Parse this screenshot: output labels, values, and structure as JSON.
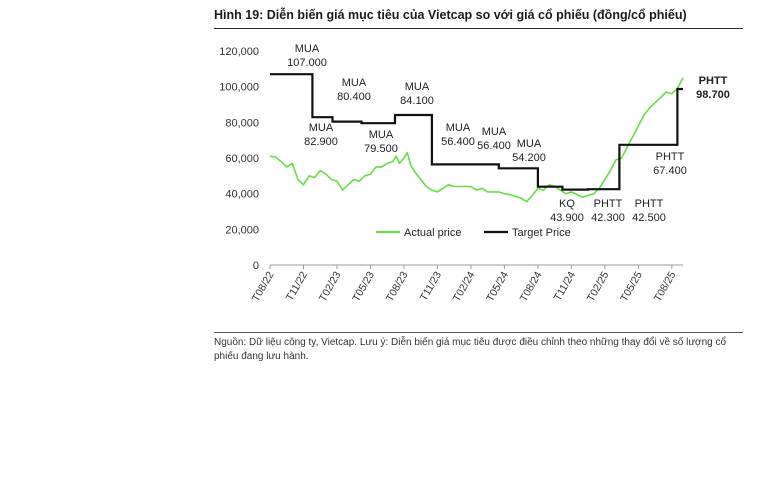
{
  "figure": {
    "title": "Hình 19: Diễn biến giá mục tiêu của Vietcap so với giá cổ phiếu (đồng/cổ phiếu)",
    "source": "Nguồn: Dữ liệu công ty, Vietcap. Lưu ý: Diễn biến giá mục tiêu được điều chỉnh theo những thay đổi về số lượng cổ phiếu đang lưu hành."
  },
  "chart_data": {
    "type": "line",
    "title": "Hình 19: Diễn biến giá mục tiêu của Vietcap so với giá cổ phiếu (đồng/cổ phiếu)",
    "xlabel": "",
    "ylabel": "",
    "ylim": [
      0,
      120000
    ],
    "y_ticks": [
      0,
      20000,
      40000,
      60000,
      80000,
      100000,
      120000
    ],
    "y_tick_labels": [
      "0",
      "20,000",
      "40,000",
      "60,000",
      "80,000",
      "100,000",
      "120,000"
    ],
    "x_ticks": [
      "T08/22",
      "T11/22",
      "T02/23",
      "T05/23",
      "T08/23",
      "T11/23",
      "T02/24",
      "T05/24",
      "T08/24",
      "T11/24",
      "T02/25",
      "T05/25",
      "T08/25"
    ],
    "x_range_months": [
      0,
      37
    ],
    "legend": {
      "position": "bottom-center",
      "entries": [
        "Actual price",
        "Target Price"
      ]
    },
    "colors": {
      "actual": "#66dd44",
      "target": "#111111"
    },
    "series": [
      {
        "name": "Actual price",
        "color": "#66dd44",
        "points": [
          [
            0,
            61000
          ],
          [
            0.5,
            60500
          ],
          [
            1,
            58000
          ],
          [
            1.5,
            55000
          ],
          [
            2,
            57000
          ],
          [
            2.5,
            48000
          ],
          [
            3,
            45000
          ],
          [
            3.5,
            50000
          ],
          [
            4,
            49000
          ],
          [
            4.5,
            53000
          ],
          [
            5,
            51000
          ],
          [
            5.5,
            48000
          ],
          [
            6,
            47000
          ],
          [
            6.5,
            42000
          ],
          [
            7,
            45000
          ],
          [
            7.5,
            48000
          ],
          [
            8,
            47000
          ],
          [
            8.5,
            50000
          ],
          [
            9,
            51000
          ],
          [
            9.5,
            55000
          ],
          [
            10,
            55000
          ],
          [
            10.5,
            57000
          ],
          [
            11,
            58000
          ],
          [
            11.3,
            61000
          ],
          [
            11.6,
            57000
          ],
          [
            12,
            60000
          ],
          [
            12.3,
            63000
          ],
          [
            12.6,
            56000
          ],
          [
            13,
            52000
          ],
          [
            13.5,
            48000
          ],
          [
            14,
            44000
          ],
          [
            14.5,
            42000
          ],
          [
            15,
            41000
          ],
          [
            15.5,
            43000
          ],
          [
            16,
            45000
          ],
          [
            16.5,
            44000
          ],
          [
            17,
            44000
          ],
          [
            17.5,
            44000
          ],
          [
            18,
            44000
          ],
          [
            18.5,
            42000
          ],
          [
            19,
            43000
          ],
          [
            19.5,
            41000
          ],
          [
            20,
            41000
          ],
          [
            20.5,
            41000
          ],
          [
            21,
            40000
          ],
          [
            21.5,
            39500
          ],
          [
            22,
            38500
          ],
          [
            22.5,
            37500
          ],
          [
            23,
            35500
          ],
          [
            23.5,
            39000
          ],
          [
            24,
            43000
          ],
          [
            24.5,
            42000
          ],
          [
            25,
            45000
          ],
          [
            25.5,
            44000
          ],
          [
            26,
            42000
          ],
          [
            26.5,
            40000
          ],
          [
            27,
            41000
          ],
          [
            27.5,
            39500
          ],
          [
            28,
            38000
          ],
          [
            28.5,
            39000
          ],
          [
            29,
            40000
          ],
          [
            29.5,
            43000
          ],
          [
            30,
            48000
          ],
          [
            30.5,
            53000
          ],
          [
            31,
            59000
          ],
          [
            31.5,
            60000
          ],
          [
            32,
            66000
          ],
          [
            32.5,
            72000
          ],
          [
            33,
            78000
          ],
          [
            33.5,
            84000
          ],
          [
            34,
            88000
          ],
          [
            34.5,
            91000
          ],
          [
            35,
            94000
          ],
          [
            35.5,
            97000
          ],
          [
            36,
            96000
          ],
          [
            36.5,
            99000
          ],
          [
            37,
            105000
          ]
        ]
      },
      {
        "name": "Target Price",
        "color": "#111111",
        "points": [
          [
            0,
            107000
          ],
          [
            3.8,
            107000
          ],
          [
            3.8,
            82900
          ],
          [
            5.6,
            82900
          ],
          [
            5.6,
            80400
          ],
          [
            8.2,
            80400
          ],
          [
            8.2,
            79500
          ],
          [
            11.2,
            79500
          ],
          [
            11.2,
            84100
          ],
          [
            14.5,
            84100
          ],
          [
            14.5,
            56400
          ],
          [
            20.5,
            56400
          ],
          [
            20.5,
            54200
          ],
          [
            24,
            54200
          ],
          [
            24,
            43900
          ],
          [
            26.2,
            43900
          ],
          [
            26.2,
            42300
          ],
          [
            28.5,
            42300
          ],
          [
            28.5,
            42500
          ],
          [
            31.3,
            42500
          ],
          [
            31.3,
            67400
          ],
          [
            36.5,
            67400
          ],
          [
            36.5,
            98700
          ],
          [
            37,
            98700
          ]
        ]
      }
    ],
    "annotations": [
      {
        "action": "MUA",
        "value": "107.000",
        "anchor": "above"
      },
      {
        "action": "MUA",
        "value": "82.900",
        "anchor": "below"
      },
      {
        "action": "MUA",
        "value": "80.400",
        "anchor": "above"
      },
      {
        "action": "MUA",
        "value": "79.500",
        "anchor": "below"
      },
      {
        "action": "MUA",
        "value": "84.100",
        "anchor": "above"
      },
      {
        "action": "MUA",
        "value": "56.400",
        "anchor": "above"
      },
      {
        "action": "MUA",
        "value": "56.400",
        "anchor": "above"
      },
      {
        "action": "MUA",
        "value": "54.200",
        "anchor": "above"
      },
      {
        "action": "KQ",
        "value": "43.900",
        "anchor": "below"
      },
      {
        "action": "PHTT",
        "value": "42.300",
        "anchor": "below"
      },
      {
        "action": "PHTT",
        "value": "42.500",
        "anchor": "below"
      },
      {
        "action": "PHTT",
        "value": "67.400",
        "anchor": "below"
      },
      {
        "action": "PHTT",
        "value": "98.700",
        "anchor": "right",
        "bold": true
      }
    ]
  }
}
